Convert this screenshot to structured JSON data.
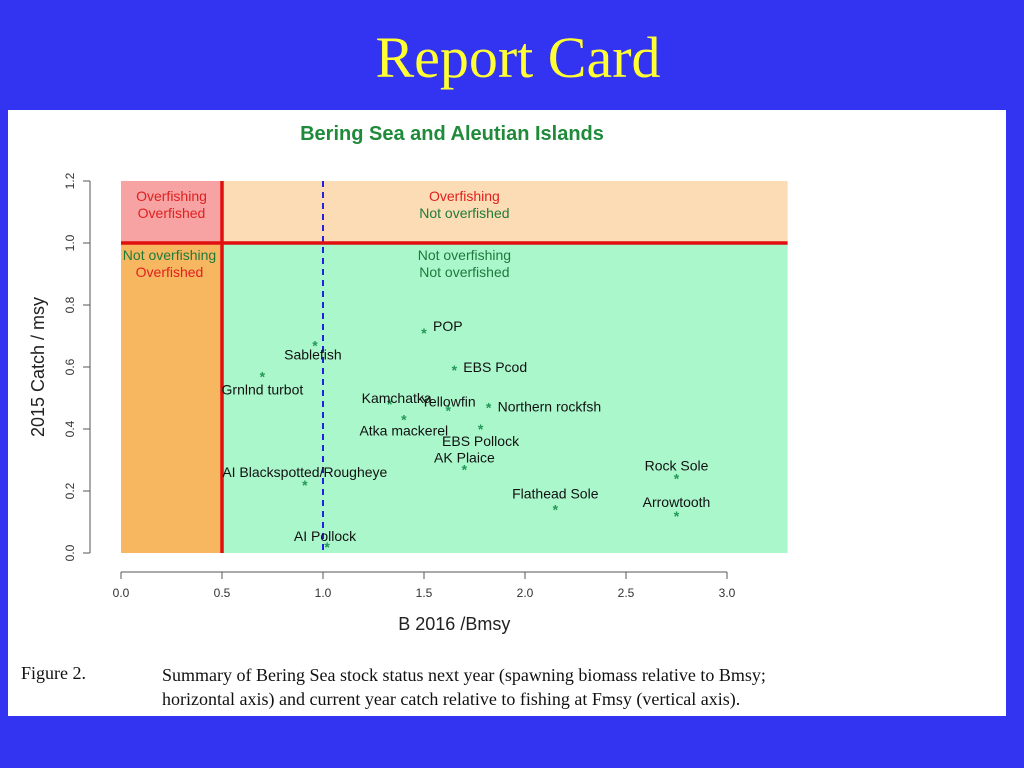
{
  "slide": {
    "title": "Report Card"
  },
  "caption": {
    "label": "Figure 2.",
    "line1": "Summary of Bering Sea stock status next year (spawning biomass relative to Bmsy;",
    "line2": "horizontal axis) and current year catch relative to fishing at Fmsy (vertical axis)."
  },
  "colors": {
    "background": "#3333f2",
    "title": "#ffff33",
    "overfishing_overfished": "#f7a3a3",
    "overfishing_not_overfished": "#fcdcb4",
    "not_overfishing_overfished": "#f7b760",
    "not_overfishing_not_overfished": "#aaf7cc",
    "threshold_line": "#e01010",
    "reference_line": "#2222dd",
    "point": "#229955",
    "chart_title": "#1f8a3a"
  },
  "chart_data": {
    "type": "scatter",
    "title": "Bering Sea and Aleutian Islands",
    "xlabel": "B 2016 /Bmsy",
    "ylabel": "2015 Catch / msy",
    "xlim": [
      0,
      3.3
    ],
    "ylim": [
      0,
      1.2
    ],
    "xticks": [
      "0.0",
      "0.5",
      "1.0",
      "1.5",
      "2.0",
      "2.5",
      "3.0"
    ],
    "yticks": [
      "0.0",
      "0.2",
      "0.4",
      "0.6",
      "0.8",
      "1.0",
      "1.2"
    ],
    "threshold_x": 0.5,
    "threshold_y": 1.0,
    "reference_x": 1.0,
    "quadrants": [
      {
        "line1": "Overfishing",
        "line2": "Overfished"
      },
      {
        "line1": "Overfishing",
        "line2": "Not overfished"
      },
      {
        "line1": "Not overfishing",
        "line2": "Overfished"
      },
      {
        "line1": "Not overfishing",
        "line2": "Not overfished"
      }
    ],
    "points": [
      {
        "label": "POP",
        "x": 1.5,
        "y": 0.71
      },
      {
        "label": "Sablefish",
        "x": 0.96,
        "y": 0.67
      },
      {
        "label": "Grnlnd turbot",
        "x": 0.7,
        "y": 0.57
      },
      {
        "label": "EBS Pcod",
        "x": 1.65,
        "y": 0.59
      },
      {
        "label": "Kamchatka",
        "x": 1.33,
        "y": 0.48
      },
      {
        "label": "Yellowfin",
        "x": 1.62,
        "y": 0.46
      },
      {
        "label": "Northern rockfsh",
        "x": 1.82,
        "y": 0.47
      },
      {
        "label": "Atka mackerel",
        "x": 1.4,
        "y": 0.43
      },
      {
        "label": "EBS Pollock",
        "x": 1.78,
        "y": 0.4
      },
      {
        "label": "AK Plaice",
        "x": 1.7,
        "y": 0.27
      },
      {
        "label": "AI Blackspotted/Rougheye",
        "x": 0.91,
        "y": 0.22
      },
      {
        "label": "Rock Sole",
        "x": 2.75,
        "y": 0.24
      },
      {
        "label": "Flathead Sole",
        "x": 2.15,
        "y": 0.14
      },
      {
        "label": "Arrowtooth",
        "x": 2.75,
        "y": 0.12
      },
      {
        "label": "AI Pollock",
        "x": 1.02,
        "y": 0.02
      }
    ]
  }
}
